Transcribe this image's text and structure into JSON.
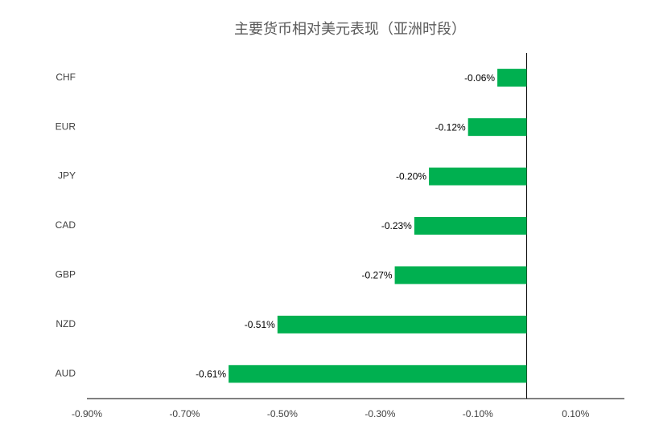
{
  "chart_data": {
    "type": "hbar",
    "title": "主要货币相对美元表现（亚洲时段）",
    "categories": [
      "CHF",
      "EUR",
      "JPY",
      "CAD",
      "GBP",
      "NZD",
      "AUD"
    ],
    "values": [
      -0.06,
      -0.12,
      -0.2,
      -0.23,
      -0.27,
      -0.51,
      -0.61
    ],
    "value_labels": [
      "-0.06%",
      "-0.12%",
      "-0.20%",
      "-0.23%",
      "-0.27%",
      "-0.51%",
      "-0.61%"
    ],
    "color": "#00b050",
    "xlim": [
      -0.9,
      0.2
    ],
    "xticks": [
      {
        "value": -0.9,
        "label": "-0.90%"
      },
      {
        "value": -0.7,
        "label": "-0.70%"
      },
      {
        "value": -0.5,
        "label": "-0.50%"
      },
      {
        "value": -0.3,
        "label": "-0.30%"
      },
      {
        "value": -0.1,
        "label": "-0.10%"
      },
      {
        "value": 0.1,
        "label": "0.10%"
      }
    ],
    "grid": false
  }
}
